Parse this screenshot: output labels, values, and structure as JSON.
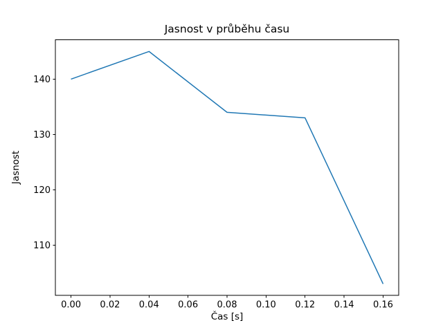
{
  "chart_data": {
    "type": "line",
    "title": "Jasnost v průběhu času",
    "xlabel": "Čas [s]",
    "ylabel": "Jasnost",
    "series": [
      {
        "name": "Jasnost",
        "x": [
          0.0,
          0.04,
          0.08,
          0.12,
          0.16
        ],
        "y": [
          140,
          145,
          134,
          133,
          103
        ]
      }
    ],
    "xlim": [
      -0.008,
      0.168
    ],
    "ylim": [
      100.9,
      147.1
    ],
    "xticks": [
      0.0,
      0.02,
      0.04,
      0.06,
      0.08,
      0.1,
      0.12,
      0.14,
      0.16
    ],
    "xtick_labels": [
      "0.00",
      "0.02",
      "0.04",
      "0.06",
      "0.08",
      "0.10",
      "0.12",
      "0.14",
      "0.16"
    ],
    "yticks": [
      110,
      120,
      130,
      140
    ],
    "ytick_labels": [
      "110",
      "120",
      "130",
      "140"
    ],
    "line_color": "#1f77b4",
    "frame_color": "#000000",
    "grid": false,
    "legend_position": "none"
  }
}
